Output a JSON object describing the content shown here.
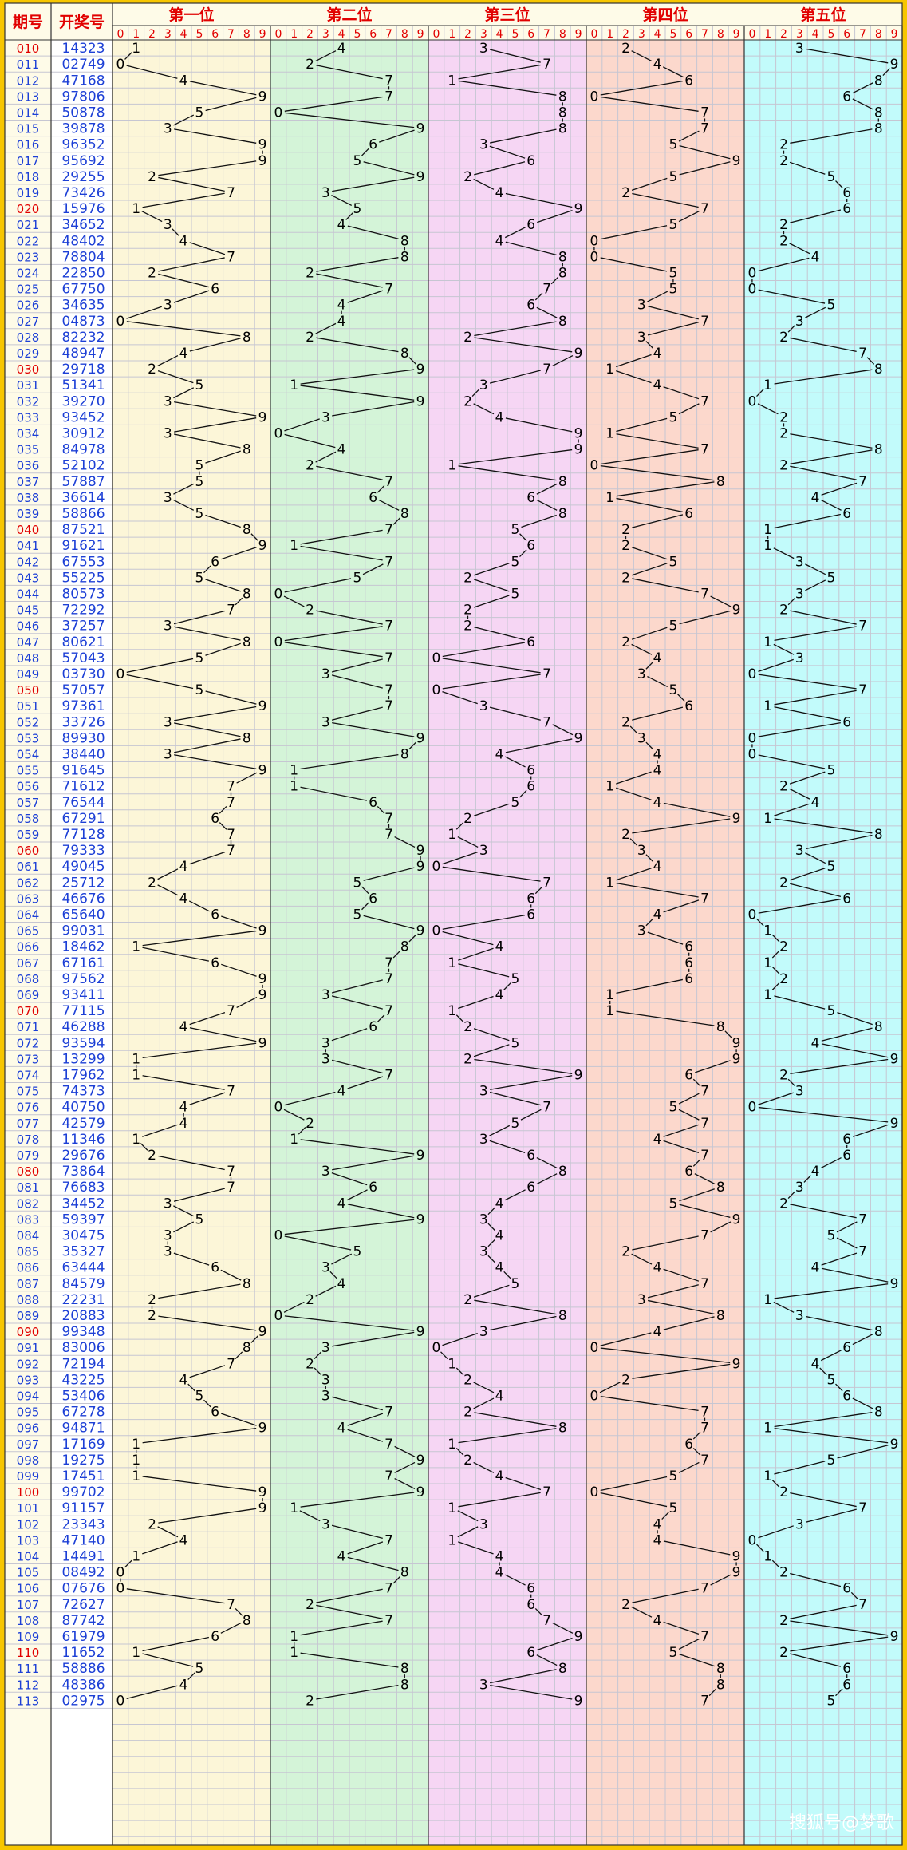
{
  "header": {
    "period_label": "期号",
    "draw_label": "开奖号",
    "positions": [
      "第一位",
      "第二位",
      "第三位",
      "第四位",
      "第五位"
    ],
    "digits": [
      "0",
      "1",
      "2",
      "3",
      "4",
      "5",
      "6",
      "7",
      "8",
      "9"
    ]
  },
  "colors": {
    "frame": "#f7c600",
    "header_bg": "#fefbe8",
    "grid": "#c6c6d2",
    "period_text": "#1c3fd6",
    "period_highlight": "#e10000",
    "header_red": "#e10000",
    "draw_text": "#1c3fd6",
    "trend_text": "#000000",
    "columns": [
      "#fcf6d8",
      "#d4f4d8",
      "#f6d6f4",
      "#fcd8cc",
      "#c2fbfb"
    ]
  },
  "watermark": "搜狐号@梦歌",
  "chart_data": {
    "type": "table",
    "title": "",
    "columns": [
      "期号",
      "开奖号",
      "第一位",
      "第二位",
      "第三位",
      "第四位",
      "第五位"
    ],
    "highlighted_periods": [
      "010",
      "020",
      "030",
      "040",
      "050",
      "060",
      "070",
      "080",
      "090",
      "100",
      "110"
    ],
    "rows": [
      {
        "period": "010",
        "draw": "14323"
      },
      {
        "period": "011",
        "draw": "02749"
      },
      {
        "period": "012",
        "draw": "47168"
      },
      {
        "period": "013",
        "draw": "97806"
      },
      {
        "period": "014",
        "draw": "50878"
      },
      {
        "period": "015",
        "draw": "39878"
      },
      {
        "period": "016",
        "draw": "96352"
      },
      {
        "period": "017",
        "draw": "95692"
      },
      {
        "period": "018",
        "draw": "29255"
      },
      {
        "period": "019",
        "draw": "73426"
      },
      {
        "period": "020",
        "draw": "15976"
      },
      {
        "period": "021",
        "draw": "34652"
      },
      {
        "period": "022",
        "draw": "48402"
      },
      {
        "period": "023",
        "draw": "78804"
      },
      {
        "period": "024",
        "draw": "22850"
      },
      {
        "period": "025",
        "draw": "67750"
      },
      {
        "period": "026",
        "draw": "34635"
      },
      {
        "period": "027",
        "draw": "04873"
      },
      {
        "period": "028",
        "draw": "82232"
      },
      {
        "period": "029",
        "draw": "48947"
      },
      {
        "period": "030",
        "draw": "29718"
      },
      {
        "period": "031",
        "draw": "51341"
      },
      {
        "period": "032",
        "draw": "39270"
      },
      {
        "period": "033",
        "draw": "93452"
      },
      {
        "period": "034",
        "draw": "30912"
      },
      {
        "period": "035",
        "draw": "84978"
      },
      {
        "period": "036",
        "draw": "52102"
      },
      {
        "period": "037",
        "draw": "57887"
      },
      {
        "period": "038",
        "draw": "36614"
      },
      {
        "period": "039",
        "draw": "58866"
      },
      {
        "period": "040",
        "draw": "87521"
      },
      {
        "period": "041",
        "draw": "91621"
      },
      {
        "period": "042",
        "draw": "67553"
      },
      {
        "period": "043",
        "draw": "55225"
      },
      {
        "period": "044",
        "draw": "80573"
      },
      {
        "period": "045",
        "draw": "72292"
      },
      {
        "period": "046",
        "draw": "37257"
      },
      {
        "period": "047",
        "draw": "80621"
      },
      {
        "period": "048",
        "draw": "57043"
      },
      {
        "period": "049",
        "draw": "03730"
      },
      {
        "period": "050",
        "draw": "57057"
      },
      {
        "period": "051",
        "draw": "97361"
      },
      {
        "period": "052",
        "draw": "33726"
      },
      {
        "period": "053",
        "draw": "89930"
      },
      {
        "period": "054",
        "draw": "38440"
      },
      {
        "period": "055",
        "draw": "91645"
      },
      {
        "period": "056",
        "draw": "71612"
      },
      {
        "period": "057",
        "draw": "76544"
      },
      {
        "period": "058",
        "draw": "67291"
      },
      {
        "period": "059",
        "draw": "77128"
      },
      {
        "period": "060",
        "draw": "79333"
      },
      {
        "period": "061",
        "draw": "49045"
      },
      {
        "period": "062",
        "draw": "25712"
      },
      {
        "period": "063",
        "draw": "46676"
      },
      {
        "period": "064",
        "draw": "65640"
      },
      {
        "period": "065",
        "draw": "99031"
      },
      {
        "period": "066",
        "draw": "18462"
      },
      {
        "period": "067",
        "draw": "67161"
      },
      {
        "period": "068",
        "draw": "97562"
      },
      {
        "period": "069",
        "draw": "93411"
      },
      {
        "period": "070",
        "draw": "77115"
      },
      {
        "period": "071",
        "draw": "46288"
      },
      {
        "period": "072",
        "draw": "93594"
      },
      {
        "period": "073",
        "draw": "13299"
      },
      {
        "period": "074",
        "draw": "17962"
      },
      {
        "period": "075",
        "draw": "74373"
      },
      {
        "period": "076",
        "draw": "40750"
      },
      {
        "period": "077",
        "draw": "42579"
      },
      {
        "period": "078",
        "draw": "11346"
      },
      {
        "period": "079",
        "draw": "29676"
      },
      {
        "period": "080",
        "draw": "73864"
      },
      {
        "period": "081",
        "draw": "76683"
      },
      {
        "period": "082",
        "draw": "34452"
      },
      {
        "period": "083",
        "draw": "59397"
      },
      {
        "period": "084",
        "draw": "30475"
      },
      {
        "period": "085",
        "draw": "35327"
      },
      {
        "period": "086",
        "draw": "63444"
      },
      {
        "period": "087",
        "draw": "84579"
      },
      {
        "period": "088",
        "draw": "22231"
      },
      {
        "period": "089",
        "draw": "20883"
      },
      {
        "period": "090",
        "draw": "99348"
      },
      {
        "period": "091",
        "draw": "83006"
      },
      {
        "period": "092",
        "draw": "72194"
      },
      {
        "period": "093",
        "draw": "43225"
      },
      {
        "period": "094",
        "draw": "53406"
      },
      {
        "period": "095",
        "draw": "67278"
      },
      {
        "period": "096",
        "draw": "94871"
      },
      {
        "period": "097",
        "draw": "17169"
      },
      {
        "period": "098",
        "draw": "19275"
      },
      {
        "period": "099",
        "draw": "17451"
      },
      {
        "period": "100",
        "draw": "99702"
      },
      {
        "period": "101",
        "draw": "91157"
      },
      {
        "period": "102",
        "draw": "23343"
      },
      {
        "period": "103",
        "draw": "47140"
      },
      {
        "period": "104",
        "draw": "14491"
      },
      {
        "period": "105",
        "draw": "08492"
      },
      {
        "period": "106",
        "draw": "07676"
      },
      {
        "period": "107",
        "draw": "72627"
      },
      {
        "period": "108",
        "draw": "87742"
      },
      {
        "period": "109",
        "draw": "61979"
      },
      {
        "period": "110",
        "draw": "11652"
      },
      {
        "period": "111",
        "draw": "58886"
      },
      {
        "period": "112",
        "draw": "48386"
      },
      {
        "period": "113",
        "draw": "02975"
      }
    ]
  }
}
